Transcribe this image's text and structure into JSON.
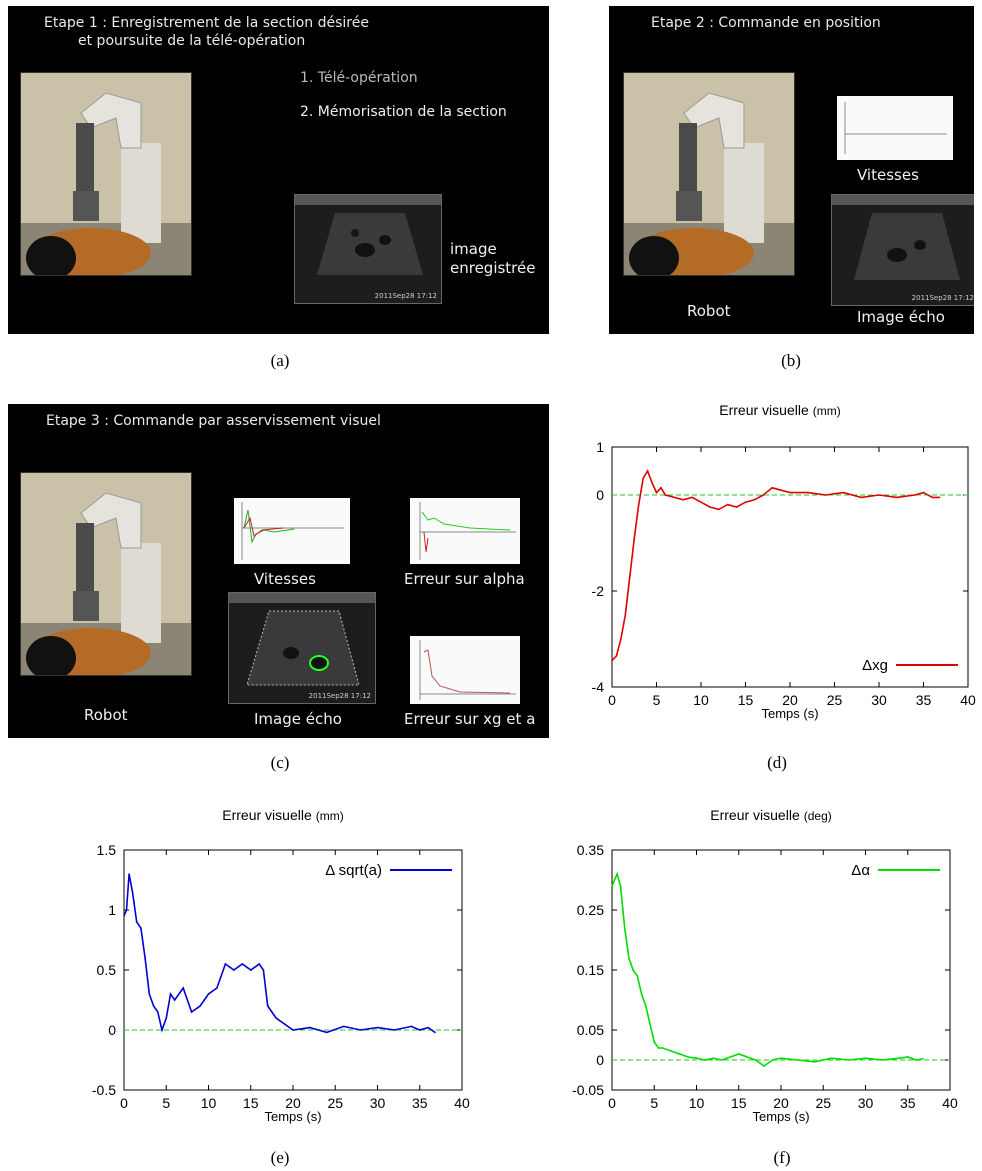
{
  "panel_a": {
    "title_line1": "Etape 1 : Enregistrement de la section désirée",
    "title_line2": "et poursuite de la télé-opération",
    "step1": "1. Télé-opération",
    "step2": "2. Mémorisation de la section",
    "image_label_1": "image",
    "image_label_2": "enregistrée",
    "echo_date": "2011Sep28   17:12",
    "caption": "(a)"
  },
  "panel_b": {
    "title": "Etape 2 : Commande en position",
    "vitesses": "Vitesses",
    "robot": "Robot",
    "image_echo": "Image écho",
    "echo_date": "2011Sep28   17:12",
    "caption": "(b)"
  },
  "panel_c": {
    "title": "Etape 3 : Commande par asservissement visuel",
    "vitesses": "Vitesses",
    "erreur_alpha": "Erreur sur alpha",
    "robot": "Robot",
    "image_echo": "Image écho",
    "erreur_xg": "Erreur sur xg et a",
    "echo_date": "2011Sep28   17:12",
    "caption": "(c)"
  },
  "chart_data": [
    {
      "id": "d",
      "type": "line",
      "title": "Erreur visuelle",
      "title_unit": "(mm)",
      "xlabel": "Temps (s)",
      "ylabel": "",
      "xlim": [
        0,
        40
      ],
      "ylim": [
        -4,
        1
      ],
      "xticks": [
        "0",
        "5",
        "10",
        "15",
        "20",
        "25",
        "30",
        "35",
        "40"
      ],
      "yticks": [
        "1",
        "0",
        "-2",
        "-4"
      ],
      "ytick_values": [
        1,
        0,
        -2,
        -4
      ],
      "zero_line": true,
      "legend_position": "bottom-right",
      "series": [
        {
          "name": "Δxg",
          "color": "#e00000",
          "x": [
            0,
            0.5,
            1,
            1.5,
            2,
            2.5,
            3,
            3.5,
            4,
            4.5,
            5,
            5.5,
            6,
            7,
            8,
            9,
            10,
            11,
            12,
            13,
            14,
            15,
            16,
            17,
            18,
            19,
            20,
            22,
            24,
            26,
            28,
            30,
            32,
            34,
            35,
            36,
            36.8
          ],
          "y": [
            -3.45,
            -3.35,
            -3.0,
            -2.5,
            -1.7,
            -0.9,
            -0.2,
            0.35,
            0.5,
            0.25,
            0.05,
            0.15,
            0.0,
            -0.05,
            -0.1,
            -0.05,
            -0.15,
            -0.25,
            -0.3,
            -0.2,
            -0.25,
            -0.15,
            -0.1,
            0.0,
            0.15,
            0.1,
            0.05,
            0.05,
            0.0,
            0.05,
            -0.05,
            0.0,
            -0.05,
            0.0,
            0.05,
            -0.05,
            -0.05
          ]
        }
      ],
      "caption": "(d)"
    },
    {
      "id": "e",
      "type": "line",
      "title": "Erreur visuelle",
      "title_unit": "(mm)",
      "xlabel": "Temps (s)",
      "ylabel": "",
      "xlim": [
        0,
        40
      ],
      "ylim": [
        -0.5,
        1.5
      ],
      "xticks": [
        "0",
        "5",
        "10",
        "15",
        "20",
        "25",
        "30",
        "35",
        "40"
      ],
      "yticks": [
        "1.5",
        "1",
        "0.5",
        "0",
        "-0.5"
      ],
      "ytick_values": [
        1.5,
        1,
        0.5,
        0,
        -0.5
      ],
      "zero_line": true,
      "legend_position": "top-right",
      "series": [
        {
          "name": "Δ sqrt(a)",
          "color": "#0000d0",
          "x": [
            0,
            0.3,
            0.6,
            1,
            1.5,
            2,
            2.5,
            3,
            3.5,
            4,
            4.5,
            5,
            5.5,
            6,
            7,
            8,
            9,
            10,
            11,
            12,
            13,
            14,
            15,
            16,
            16.5,
            17,
            17.5,
            18,
            19,
            20,
            22,
            24,
            26,
            28,
            30,
            32,
            34,
            35,
            36,
            36.8
          ],
          "y": [
            0.95,
            1.0,
            1.3,
            1.15,
            0.9,
            0.85,
            0.6,
            0.3,
            0.2,
            0.15,
            0.0,
            0.1,
            0.3,
            0.25,
            0.35,
            0.15,
            0.2,
            0.3,
            0.35,
            0.55,
            0.5,
            0.55,
            0.5,
            0.55,
            0.5,
            0.2,
            0.15,
            0.1,
            0.05,
            0.0,
            0.02,
            -0.02,
            0.03,
            0.0,
            0.02,
            0.0,
            0.03,
            0.0,
            0.02,
            -0.02
          ]
        }
      ],
      "caption": "(e)"
    },
    {
      "id": "f",
      "type": "line",
      "title": "Erreur visuelle",
      "title_unit": "(deg)",
      "xlabel": "Temps (s)",
      "ylabel": "",
      "xlim": [
        0,
        40
      ],
      "ylim": [
        -0.05,
        0.35
      ],
      "xticks": [
        "0",
        "5",
        "10",
        "15",
        "20",
        "25",
        "30",
        "35",
        "40"
      ],
      "yticks": [
        "0.35",
        "0.25",
        "0.15",
        "0.05",
        "0",
        "-0.05"
      ],
      "ytick_values": [
        0.35,
        0.25,
        0.15,
        0.05,
        0,
        -0.05
      ],
      "zero_line": true,
      "legend_position": "top-right",
      "series": [
        {
          "name": "Δα",
          "color": "#00dd00",
          "x": [
            0,
            0.3,
            0.6,
            1,
            1.5,
            2,
            2.5,
            3,
            3.5,
            4,
            4.5,
            5,
            5.5,
            6,
            7,
            8,
            9,
            10,
            11,
            12,
            13,
            14,
            15,
            16,
            17,
            18,
            19,
            20,
            22,
            24,
            26,
            28,
            30,
            32,
            34,
            35,
            36,
            36.8
          ],
          "y": [
            0.29,
            0.3,
            0.31,
            0.29,
            0.22,
            0.17,
            0.15,
            0.14,
            0.11,
            0.09,
            0.06,
            0.03,
            0.02,
            0.02,
            0.015,
            0.01,
            0.005,
            0.003,
            0.0,
            0.003,
            0.0,
            0.005,
            0.01,
            0.005,
            0.0,
            -0.01,
            0.0,
            0.003,
            0.0,
            -0.003,
            0.003,
            0.0,
            0.003,
            0.0,
            0.003,
            0.005,
            0.0,
            0.002
          ]
        }
      ],
      "caption": "(f)"
    }
  ]
}
